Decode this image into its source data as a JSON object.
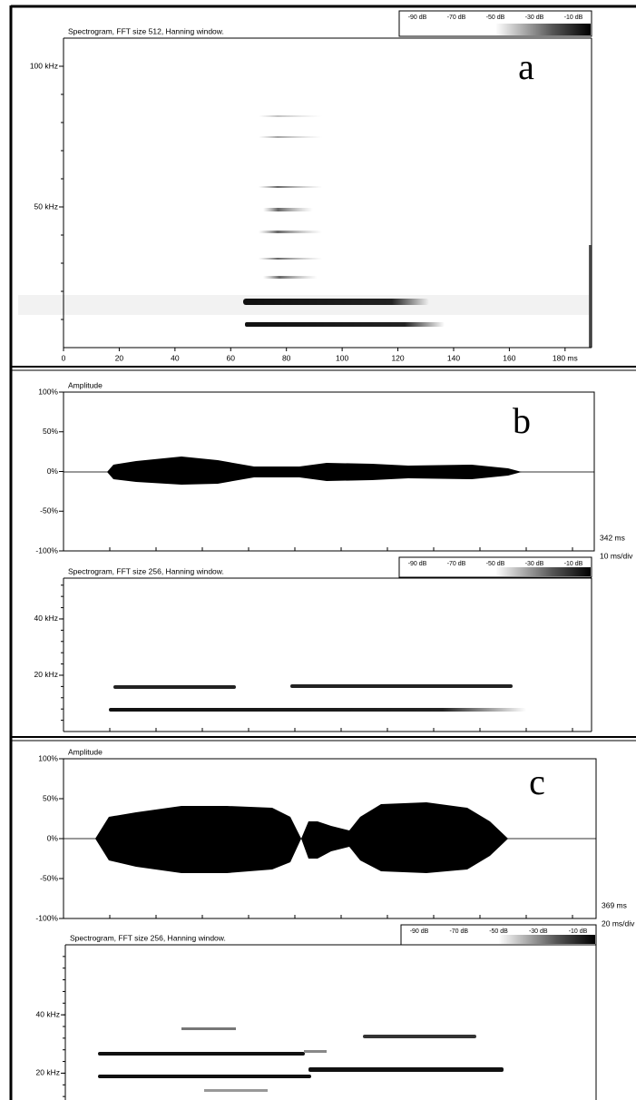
{
  "panels": [
    {
      "label": "a",
      "spectrogram": {
        "title": "Spectrogram, FFT size 512, Hanning window.",
        "colorbar": [
          "-90 dB",
          "-70 dB",
          "-50 dB",
          "-30 dB",
          "-10 dB"
        ],
        "ylim": [
          0,
          110
        ],
        "yticks": [
          {
            "value": 50,
            "label": "50 kHz"
          },
          {
            "value": 100,
            "label": "100 kHz"
          }
        ],
        "xlim": [
          0,
          189.5
        ],
        "xticks": [
          0,
          20,
          40,
          60,
          80,
          100,
          120,
          140,
          160,
          {
            "value": 180,
            "label": "180 ms"
          }
        ]
      }
    },
    {
      "label": "b",
      "waveform": {
        "title": "Amplitude",
        "ylim": [
          -100,
          100
        ],
        "yticks": [
          {
            "value": 100,
            "label": "100%"
          },
          {
            "value": 50,
            "label": "50%"
          },
          {
            "value": 0,
            "label": "0%"
          },
          {
            "value": -50,
            "label": "-50%"
          },
          {
            "value": -100,
            "label": "-100%"
          }
        ],
        "duration": "342 ms",
        "scale": "10 ms/div"
      },
      "spectrogram": {
        "title": "Spectrogram, FFT size 256, Hanning window.",
        "colorbar": [
          "-90 dB",
          "-70 dB",
          "-50 dB",
          "-30 dB",
          "-10 dB"
        ],
        "ylim": [
          0,
          54.5
        ],
        "yticks": [
          {
            "value": 20,
            "label": "20 kHz"
          },
          {
            "value": 40,
            "label": "40 kHz"
          }
        ]
      }
    },
    {
      "label": "c",
      "waveform": {
        "title": "Amplitude",
        "ylim": [
          -100,
          100
        ],
        "yticks": [
          {
            "value": 100,
            "label": "100%"
          },
          {
            "value": 50,
            "label": "50%"
          },
          {
            "value": 0,
            "label": "0%"
          },
          {
            "value": -50,
            "label": "-50%"
          },
          {
            "value": -100,
            "label": "-100%"
          }
        ],
        "duration": "369 ms",
        "scale": "20 ms/div"
      },
      "spectrogram": {
        "title": "Spectrogram, FFT size 256, Hanning window.",
        "colorbar": [
          "-90 dB",
          "-70 dB",
          "-50 dB",
          "-30 dB",
          "-10 dB"
        ],
        "ylim": [
          8,
          64
        ],
        "yticks": [
          {
            "value": 20,
            "label": "20 kHz"
          },
          {
            "value": 40,
            "label": "40 kHz"
          }
        ]
      }
    }
  ]
}
